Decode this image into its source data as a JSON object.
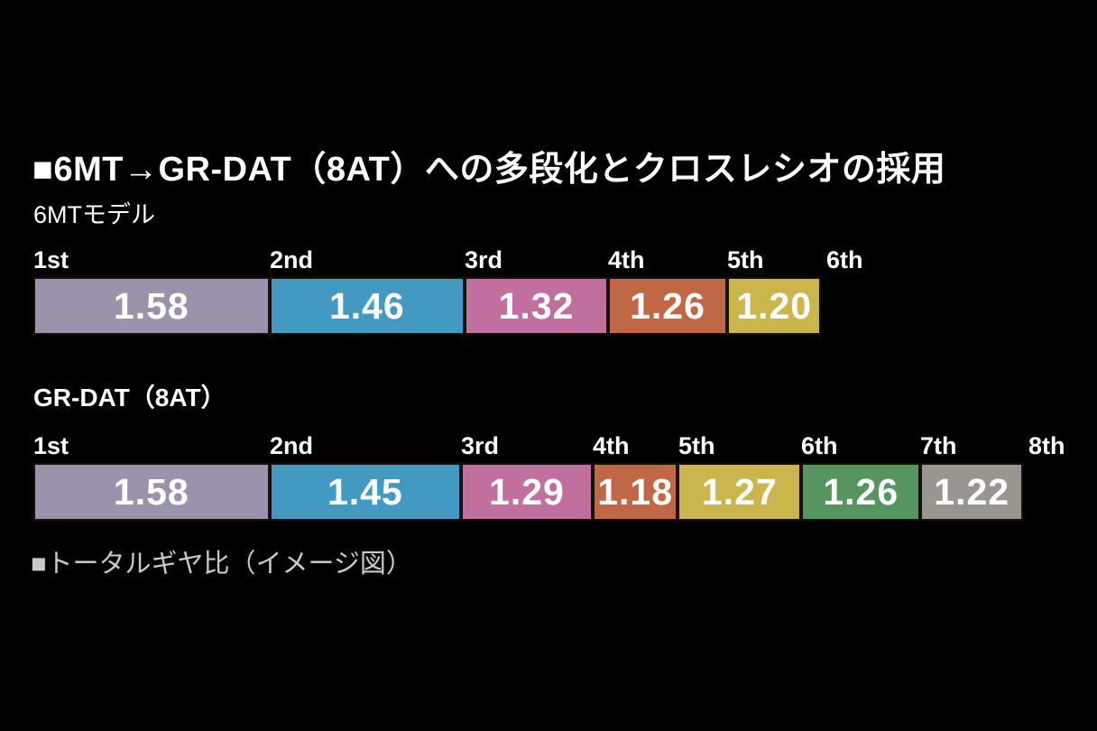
{
  "page": {
    "title": "■6MT→GR-DAT（8AT）への多段化とクロスレシオの採用",
    "caption": "■トータルギヤ比（イメージ図）",
    "background_color": "#000000",
    "title_color": "#ffffff",
    "caption_color": "#c9c9c9"
  },
  "chart_data": [
    {
      "type": "bar",
      "title": "6MTモデル",
      "categories": [
        "1st",
        "2nd",
        "3rd",
        "4th",
        "5th"
      ],
      "values": [
        1.58,
        1.46,
        1.32,
        1.26,
        1.2
      ],
      "gear_labels": [
        "1st",
        "2nd",
        "3rd",
        "4th",
        "5th",
        "6th"
      ],
      "colors": [
        "#9b93ac",
        "#4299c1",
        "#c06f9e",
        "#c06845",
        "#cbb54d"
      ],
      "value_text_color": "#ffffff",
      "layout_hint": "horizontal segmented bar, segment width proportional to log(value), gear labels mark segment start positions"
    },
    {
      "type": "bar",
      "title": "GR-DAT（8AT）",
      "categories": [
        "1st",
        "2nd",
        "3rd",
        "4th",
        "5th",
        "6th",
        "7th"
      ],
      "values": [
        1.58,
        1.45,
        1.29,
        1.18,
        1.27,
        1.26,
        1.22
      ],
      "gear_labels": [
        "1st",
        "2nd",
        "3rd",
        "4th",
        "5th",
        "6th",
        "7th",
        "8th"
      ],
      "colors": [
        "#9b93ac",
        "#4299c1",
        "#c06f9e",
        "#c06845",
        "#cbb54d",
        "#56955f",
        "#999690"
      ],
      "value_text_color": "#ffffff",
      "layout_hint": "horizontal segmented bar, segment width proportional to log(value), gear labels mark segment start positions"
    }
  ]
}
